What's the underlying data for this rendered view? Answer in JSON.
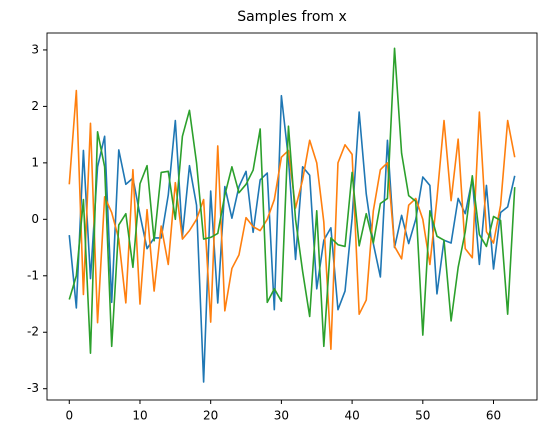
{
  "chart_data": {
    "type": "line",
    "title": "Samples from x",
    "x": [
      0,
      1,
      2,
      3,
      4,
      5,
      6,
      7,
      8,
      9,
      10,
      11,
      12,
      13,
      14,
      15,
      16,
      17,
      18,
      19,
      20,
      21,
      22,
      23,
      24,
      25,
      26,
      27,
      28,
      29,
      30,
      31,
      32,
      33,
      34,
      35,
      36,
      37,
      38,
      39,
      40,
      41,
      42,
      43,
      44,
      45,
      46,
      47,
      48,
      49,
      50,
      51,
      52,
      53,
      54,
      55,
      56,
      57,
      58,
      59,
      60,
      61,
      62,
      63
    ],
    "series": [
      {
        "color": "#1f77b4",
        "values": [
          -0.28,
          -1.57,
          1.22,
          -1.05,
          0.93,
          1.47,
          -1.47,
          1.23,
          0.62,
          0.73,
          0.08,
          -0.52,
          -0.33,
          -0.33,
          0.43,
          1.75,
          -0.3,
          0.95,
          0.25,
          -2.88,
          0.5,
          -1.48,
          0.58,
          0.02,
          0.58,
          0.85,
          -0.23,
          0.7,
          0.82,
          -1.6,
          2.19,
          1.07,
          -0.71,
          0.93,
          0.78,
          -1.23,
          -0.37,
          -0.15,
          -1.6,
          -1.27,
          0.02,
          1.9,
          0.45,
          -0.43,
          -1.02,
          1.4,
          -0.5,
          0.07,
          -0.43,
          0.0,
          0.75,
          0.6,
          -1.32,
          -0.37,
          -0.42,
          0.37,
          0.1,
          0.72,
          -0.8,
          0.6,
          -0.88,
          0.12,
          0.22,
          0.77
        ]
      },
      {
        "color": "#ff7f0e",
        "values": [
          0.62,
          2.28,
          -1.33,
          1.7,
          -1.83,
          0.4,
          0.12,
          -0.35,
          -1.48,
          0.88,
          -1.5,
          0.17,
          -1.27,
          -0.12,
          -0.8,
          0.65,
          -0.35,
          -0.2,
          0.0,
          0.35,
          -1.82,
          1.3,
          -1.62,
          -0.87,
          -0.63,
          0.03,
          -0.13,
          -0.2,
          0.0,
          0.35,
          1.1,
          1.22,
          0.2,
          0.7,
          1.4,
          1.0,
          -0.05,
          -2.3,
          1.0,
          1.32,
          1.15,
          -1.68,
          -1.43,
          0.15,
          0.88,
          1.0,
          -0.48,
          -0.7,
          0.25,
          0.37,
          0.0,
          -0.8,
          0.37,
          1.75,
          0.33,
          1.42,
          -0.52,
          -0.68,
          1.9,
          -0.22,
          -0.42,
          0.25,
          1.75,
          1.1
        ]
      },
      {
        "color": "#2ca02c",
        "values": [
          -1.42,
          -1.0,
          0.35,
          -2.37,
          1.55,
          0.93,
          -2.25,
          -0.1,
          0.1,
          -0.85,
          0.63,
          0.95,
          -0.38,
          0.83,
          0.85,
          0.0,
          1.47,
          1.93,
          1.0,
          -0.35,
          -0.32,
          -0.25,
          0.43,
          0.93,
          0.47,
          0.62,
          0.87,
          1.6,
          -1.47,
          -1.23,
          -1.45,
          1.65,
          0.0,
          -0.92,
          -1.72,
          0.15,
          -2.25,
          -0.33,
          -0.45,
          -0.48,
          0.83,
          -0.47,
          0.1,
          -0.42,
          0.28,
          0.37,
          3.03,
          1.17,
          0.42,
          0.32,
          -2.05,
          0.15,
          -0.3,
          -0.37,
          -1.8,
          -0.85,
          -0.22,
          0.77,
          -0.27,
          -0.48,
          0.05,
          -0.02,
          -1.68,
          0.57
        ]
      }
    ],
    "xlim": [
      -3.15,
      66.15
    ],
    "ylim": [
      -3.2,
      3.3
    ],
    "xticks": [
      0,
      10,
      20,
      30,
      40,
      50,
      60
    ],
    "yticks": [
      -3,
      -2,
      -1,
      0,
      1,
      2,
      3
    ],
    "grid": false
  }
}
